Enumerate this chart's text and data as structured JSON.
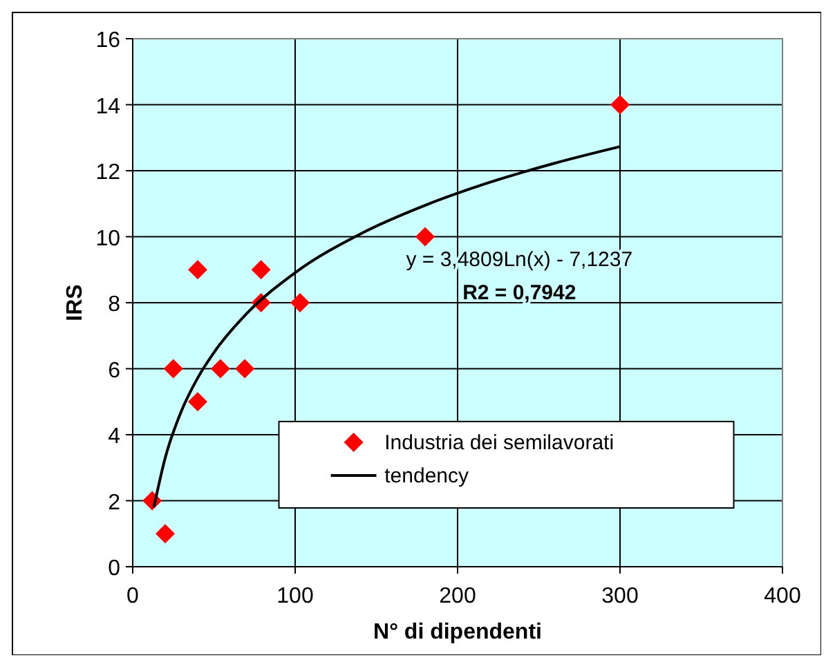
{
  "chart_data": {
    "type": "scatter",
    "xlabel": "N° di dipendenti",
    "ylabel": "IRS",
    "xlim": [
      0,
      400
    ],
    "xticks": [
      0,
      100,
      200,
      300,
      400
    ],
    "ylim": [
      0,
      16
    ],
    "yticks": [
      0,
      2,
      4,
      6,
      8,
      10,
      12,
      14,
      16
    ],
    "grid": true,
    "legend": "bottom right",
    "annotations": [
      "y = 3,4809Ln(x) - 7,1237",
      "R2 = 0,7942"
    ],
    "series": [
      {
        "name": "Industria dei semilavorati",
        "marker": "diamond",
        "color": "#ff0000",
        "x": [
          12,
          20,
          25,
          40,
          40,
          54,
          69,
          79,
          79,
          103,
          180,
          300
        ],
        "values": [
          2,
          1,
          6,
          9,
          5,
          6,
          6,
          9,
          8,
          8,
          10,
          14
        ]
      },
      {
        "name": "tendency",
        "type": "line",
        "marker": "none",
        "line_style": "solid",
        "color": "#000000",
        "x": [
          13,
          20,
          30,
          40,
          50,
          70,
          100,
          140,
          180,
          220,
          260,
          300
        ],
        "values": [
          1.8,
          3.3,
          4.72,
          5.72,
          6.49,
          7.66,
          8.91,
          10.08,
          10.95,
          11.65,
          12.23,
          12.73
        ]
      }
    ]
  }
}
